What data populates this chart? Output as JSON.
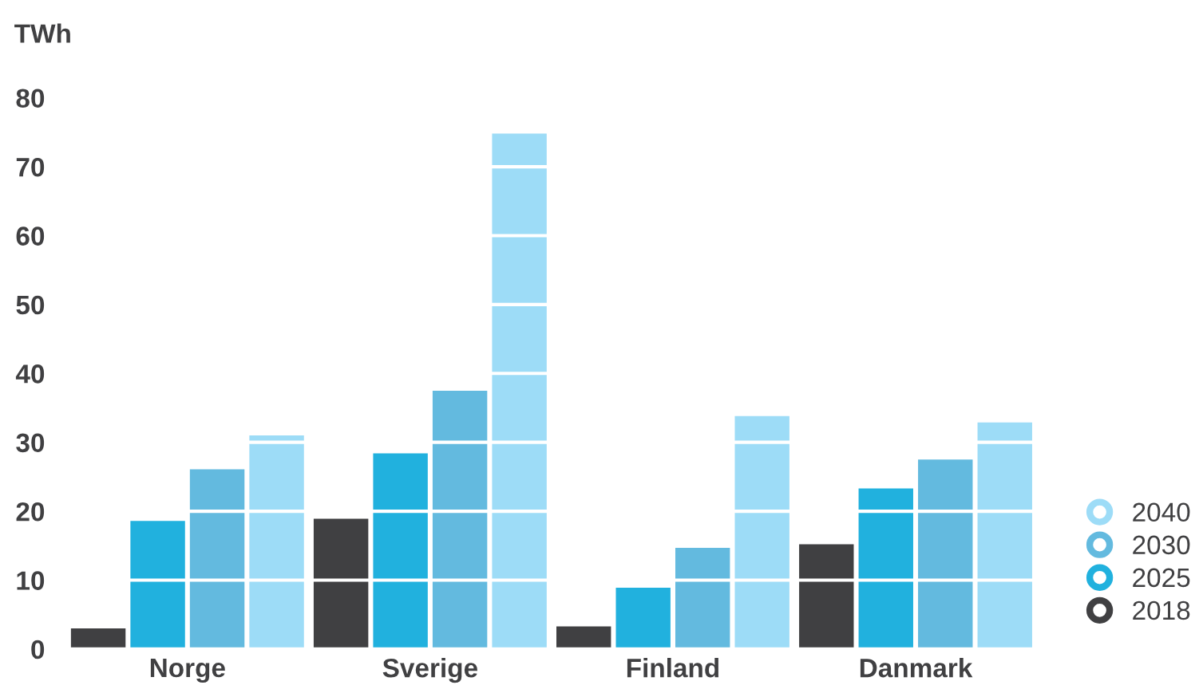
{
  "chart_data": {
    "type": "bar",
    "ylabel": "TWh",
    "categories": [
      "Norge",
      "Sverige",
      "Finland",
      "Danmark"
    ],
    "series": [
      {
        "name": "2018",
        "color": "#404042",
        "values": [
          3.0,
          18.9,
          3.3,
          15.2
        ]
      },
      {
        "name": "2025",
        "color": "#21b1de",
        "values": [
          18.6,
          28.4,
          8.9,
          23.3
        ]
      },
      {
        "name": "2030",
        "color": "#63badf",
        "values": [
          26.1,
          37.5,
          14.7,
          27.5
        ]
      },
      {
        "name": "2040",
        "color": "#9ddcf7",
        "values": [
          31.0,
          74.8,
          33.8,
          32.9
        ]
      }
    ],
    "ylim": [
      0,
      80
    ],
    "yticks": [
      0,
      10,
      20,
      30,
      40,
      50,
      60,
      70,
      80
    ],
    "grid": "y",
    "legend": "bottom right",
    "marker": "circle"
  }
}
